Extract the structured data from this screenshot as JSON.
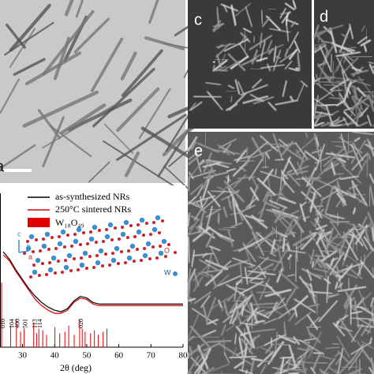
{
  "panels": {
    "a": "a",
    "c": "c",
    "d": "d",
    "e": "e"
  },
  "chart_data": {
    "type": "line",
    "x": [
      24,
      26,
      28,
      30,
      32,
      34,
      36,
      38,
      40,
      42,
      44,
      46,
      48,
      50,
      52,
      54,
      56,
      58,
      60,
      62,
      64,
      66,
      68,
      70,
      72,
      74,
      76,
      78,
      80
    ],
    "series": [
      {
        "name": "as-synthesized NRs",
        "color": "#000000",
        "values": [
          62,
          57,
          50,
          44,
          38,
          33,
          29,
          26,
          24,
          23,
          25,
          30,
          33,
          32,
          29,
          28,
          28,
          28,
          28,
          28,
          28,
          28,
          28,
          28,
          28,
          28,
          28,
          28,
          28
        ]
      },
      {
        "name": "250°C sintered NRs",
        "color": "#e00000",
        "values": [
          60,
          56,
          49,
          43,
          37,
          31,
          27,
          24,
          22,
          22,
          24,
          29,
          32,
          31,
          28,
          27,
          27,
          27,
          27,
          27,
          27,
          27,
          27,
          27,
          27,
          27,
          27,
          27,
          27
        ]
      }
    ],
    "reference": {
      "name": "W₁₈O₄₉",
      "color": "#e00000",
      "x": [
        23.5,
        26.3,
        28.1,
        29.4,
        30.5,
        33.5,
        34.4,
        35.1,
        36.3,
        37.5,
        40.1,
        41.6,
        43.2,
        44.4,
        46.1,
        47.8,
        48.6,
        49.5,
        51.2,
        52.4,
        53.6,
        55.1,
        56.3
      ],
      "values": [
        42,
        14,
        18,
        10,
        12,
        16,
        9,
        12,
        11,
        8,
        13,
        9,
        10,
        14,
        8,
        18,
        12,
        10,
        9,
        11,
        8,
        10,
        12
      ]
    },
    "annotations": [
      {
        "text": "010",
        "x": 23.5
      },
      {
        "text": "104",
        "x": 26.3
      },
      {
        "text": "400",
        "x": 28.1
      },
      {
        "text": "501",
        "x": 30.5
      },
      {
        "text": "113",
        "x": 33.5
      },
      {
        "text": "114",
        "x": 35.1
      },
      {
        "text": "020",
        "x": 47.8
      }
    ],
    "inset_labels": [
      "c",
      "b",
      "a",
      "O",
      "W"
    ],
    "xlabel": "2θ (deg)",
    "xlim": [
      23,
      80
    ],
    "ylim": [
      0,
      100
    ],
    "xticks": [
      30,
      40,
      50,
      60,
      70,
      80
    ]
  }
}
